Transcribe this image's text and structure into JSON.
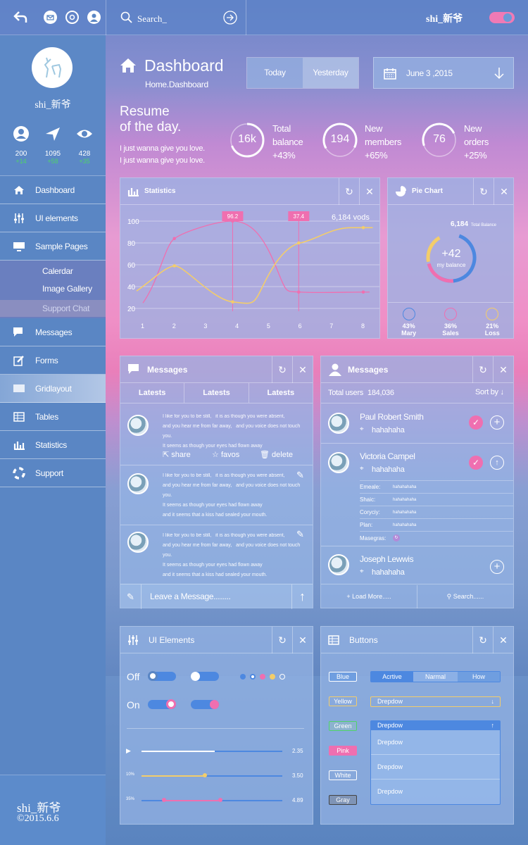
{
  "topbar": {
    "search_placeholder": "Search_",
    "username": "shi_新爷"
  },
  "sidebar": {
    "stats": [
      {
        "value": "200",
        "delta": "+14"
      },
      {
        "value": "1095",
        "delta": "+58"
      },
      {
        "value": "428",
        "delta": "+35"
      }
    ],
    "name": "shi_新爷",
    "nav": [
      {
        "label": "Dashboard",
        "icon": "home-icon"
      },
      {
        "label": "UI elements",
        "icon": "sliders-icon"
      },
      {
        "label": "Sample Pages",
        "icon": "monitor-icon"
      }
    ],
    "sub": [
      "Calerdar",
      "Image Gallery",
      "Support Chat"
    ],
    "nav2": [
      {
        "label": "Messages",
        "icon": "chat-icon"
      },
      {
        "label": "Forms",
        "icon": "edit-icon"
      },
      {
        "label": "Gridlayout",
        "icon": "grid-icon"
      },
      {
        "label": "Tables",
        "icon": "table-icon"
      },
      {
        "label": "Statistics",
        "icon": "bars-icon"
      },
      {
        "label": "Support",
        "icon": "lifebuoy-icon"
      }
    ],
    "footer": {
      "name": "shi_新爷",
      "date": "©2015.6.6"
    }
  },
  "header": {
    "title": "Dashboard",
    "breadcrumb": "Home.Dashboard",
    "today": "Today",
    "yesterday": "Yesterday",
    "date": "June 3 ,2015"
  },
  "resume": {
    "title1": "Resume",
    "title2": "of the day.",
    "line1": "I just wanna give you love.",
    "line2": "I just wanna give you love.",
    "kpis": [
      {
        "value": "16k",
        "l1": "Total",
        "l2": "balance",
        "l3": "+43%"
      },
      {
        "value": "194",
        "l1": "New",
        "l2": "members",
        "l3": "+65%"
      },
      {
        "value": "76",
        "l1": "New",
        "l2": "orders",
        "l3": "+25%"
      }
    ]
  },
  "statistics": {
    "title": "Statistics",
    "tip1": "96.2",
    "tip2": "37.4",
    "total": "6,184 vods"
  },
  "chart_data": {
    "type": "line",
    "x": [
      1,
      2,
      3,
      4,
      5,
      6,
      7,
      8
    ],
    "ylim": [
      20,
      100
    ],
    "yticks": [
      100,
      80,
      60,
      40,
      20
    ],
    "series": [
      {
        "values": [
          25,
          84,
          null,
          100,
          null,
          null,
          null,
          null
        ],
        "color": "#ef6fb0"
      },
      {
        "values": [
          40,
          60,
          null,
          26,
          null,
          80,
          null,
          94
        ],
        "color": "#f3cd6a"
      }
    ]
  },
  "pie": {
    "title": "Pie Chart",
    "total": "6,184",
    "total_label": "Total Balance",
    "center": "+42",
    "center_label": "my balance",
    "legend": [
      {
        "pct": "43%",
        "name": "Mary"
      },
      {
        "pct": "36%",
        "name": "Sales"
      },
      {
        "pct": "21%",
        "name": "Loss"
      }
    ]
  },
  "messages": {
    "title": "Messages",
    "tabs": [
      "Latests",
      "Latests",
      "Latests"
    ],
    "items": [
      {
        "l1": "I like for you to be still,",
        "l1b": "it is as though you were absent,",
        "l2": "and you hear me from far away,",
        "l2b": "and you voice does not touch you.",
        "l3": "It seems as though your eyes had flown away",
        "l4": ""
      },
      {
        "l1": "I like for you to be still,",
        "l1b": "it is as though you were absent,",
        "l2": "and you hear me from far away,",
        "l2b": "and you voice does not touch you.",
        "l3": "It seems as though your eyes had flown away",
        "l4": "and it seems that a kiss had sealed your mouth."
      },
      {
        "l1": "I like for you to be still,",
        "l1b": "it is as though you were absent,",
        "l2": "and you hear me from far away,",
        "l2b": "and you voice does not touch you.",
        "l3": "It seems as though your eyes had flown away",
        "l4": "and it seems that a kiss had sealed your mouth."
      }
    ],
    "actions": [
      "share",
      "favos",
      "delete"
    ],
    "input_placeholder": "Leave a Message........"
  },
  "users": {
    "title": "Messages",
    "total_label": "Total users",
    "total": "184,036",
    "sort": "Sort  by",
    "list": [
      {
        "name": "Paul Robert Smith",
        "sub": "hahahaha"
      },
      {
        "name": "Victoria Campel",
        "sub": "hahahaha"
      },
      {
        "name": "Joseph Lewwis",
        "sub": "hahahaha"
      }
    ],
    "details": [
      {
        "k": "Emeale:",
        "v": "hahahahaha"
      },
      {
        "k": "Shaic:",
        "v": "hahahahaha"
      },
      {
        "k": "Coryciy:",
        "v": "hahahahaha"
      },
      {
        "k": "Plan:",
        "v": "hahahahaha"
      },
      {
        "k": "Masegras:",
        "v": ""
      }
    ],
    "load": "Load  More.....",
    "search": "Search......"
  },
  "ui": {
    "title": "UI Elements",
    "off": "Off",
    "on": "On",
    "sliders": [
      {
        "label": "",
        "value": "2.35",
        "fill": 0.52
      },
      {
        "label": "10%",
        "value": "3.50",
        "fill": 0.45
      },
      {
        "label": "35%",
        "value": "4.89",
        "fill": 0.56
      }
    ]
  },
  "buttons": {
    "title": "Buttons",
    "list": [
      "Blue",
      "Yellow",
      "Green",
      "Pink",
      "White",
      "Gray"
    ],
    "seg": [
      "Acrtive",
      "Narmal",
      "How"
    ],
    "dropdown": "Drepdow",
    "options": [
      "Drepdow",
      "Drepdow",
      "Drepdow"
    ]
  }
}
